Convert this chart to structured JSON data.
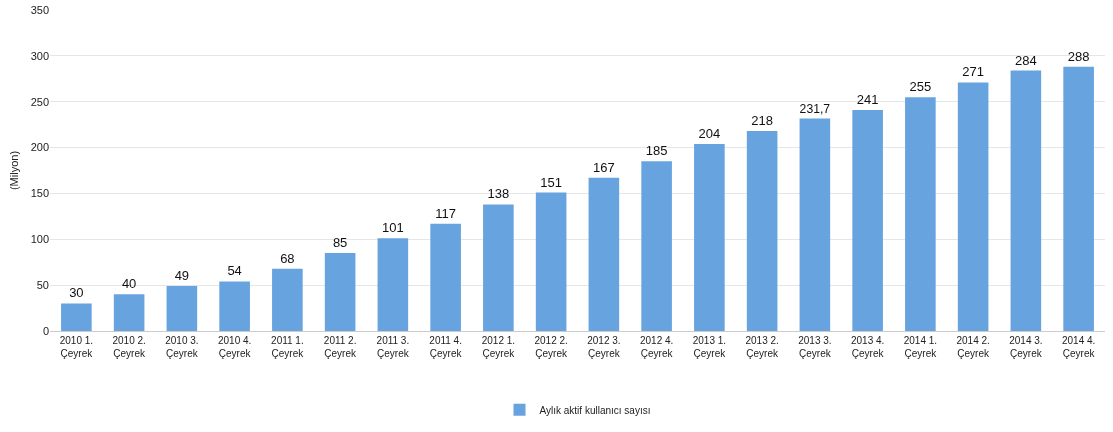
{
  "chart_data": {
    "type": "bar",
    "ylabel": "(Milyon)",
    "categories": [
      "2010 1. Çeyrek",
      "2010 2. Çeyrek",
      "2010 3. Çeyrek",
      "2010 4. Çeyrek",
      "2011 1. Çeyrek",
      "2011 2. Çeyrek",
      "2011 3. Çeyrek",
      "2011 4. Çeyrek",
      "2012 1. Çeyrek",
      "2012 2. Çeyrek",
      "2012 3. Çeyrek",
      "2012 4. Çeyrek",
      "2013 1. Çeyrek",
      "2013 2. Çeyrek",
      "2013 3. Çeyrek",
      "2013 4. Çeyrek",
      "2014 1. Çeyrek",
      "2014 2. Çeyrek",
      "2014 3. Çeyrek",
      "2014 4. Çeyrek"
    ],
    "series": [
      {
        "name": "Aylık aktif kullanıcı sayısı",
        "color": "#67a3de",
        "values": [
          30,
          40,
          49,
          54,
          68,
          85,
          101,
          117,
          138,
          151,
          167,
          185,
          204,
          218,
          231.7,
          241,
          255,
          271,
          284,
          288
        ],
        "value_labels": [
          "30",
          "40",
          "49",
          "54",
          "68",
          "85",
          "101",
          "117",
          "138",
          "151",
          "167",
          "185",
          "204",
          "218",
          "231,7",
          "241",
          "255",
          "271",
          "284",
          "288"
        ]
      }
    ],
    "ylim": [
      0,
      350
    ],
    "yticks": [
      0,
      50,
      100,
      150,
      200,
      250,
      300,
      350
    ],
    "grid": "y",
    "legend": "bottom"
  }
}
